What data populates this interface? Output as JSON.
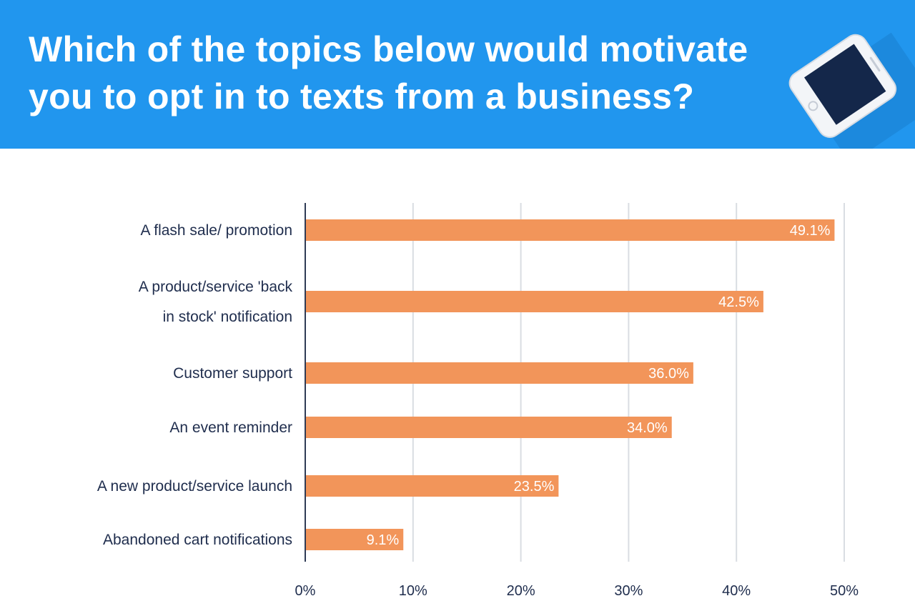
{
  "header": {
    "title": "Which of the topics below would motivate you to opt in to texts from a business?",
    "background_color": "#2196ee",
    "illustration": "smartphone-icon"
  },
  "chart_data": {
    "type": "bar",
    "orientation": "horizontal",
    "categories": [
      [
        "A flash sale/ promotion"
      ],
      [
        "A product/service 'back",
        "in stock' notification"
      ],
      [
        "Customer support"
      ],
      [
        "An event reminder"
      ],
      [
        "A new product/service launch"
      ],
      [
        "Abandoned cart notifications"
      ]
    ],
    "values": [
      49.1,
      42.5,
      36.0,
      34.0,
      23.5,
      9.1
    ],
    "value_labels": [
      "49.1%",
      "42.5%",
      "36.0%",
      "34.0%",
      "23.5%",
      "9.1%"
    ],
    "xlim": [
      0,
      50
    ],
    "xticks": [
      0,
      10,
      20,
      30,
      40,
      50
    ],
    "xtick_labels": [
      "0%",
      "10%",
      "20%",
      "30%",
      "40%",
      "50%"
    ],
    "grid": "vertical",
    "bar_color": "#f2955a",
    "label_color": "#1f2d4d",
    "value_label_color": "#ffffff"
  }
}
